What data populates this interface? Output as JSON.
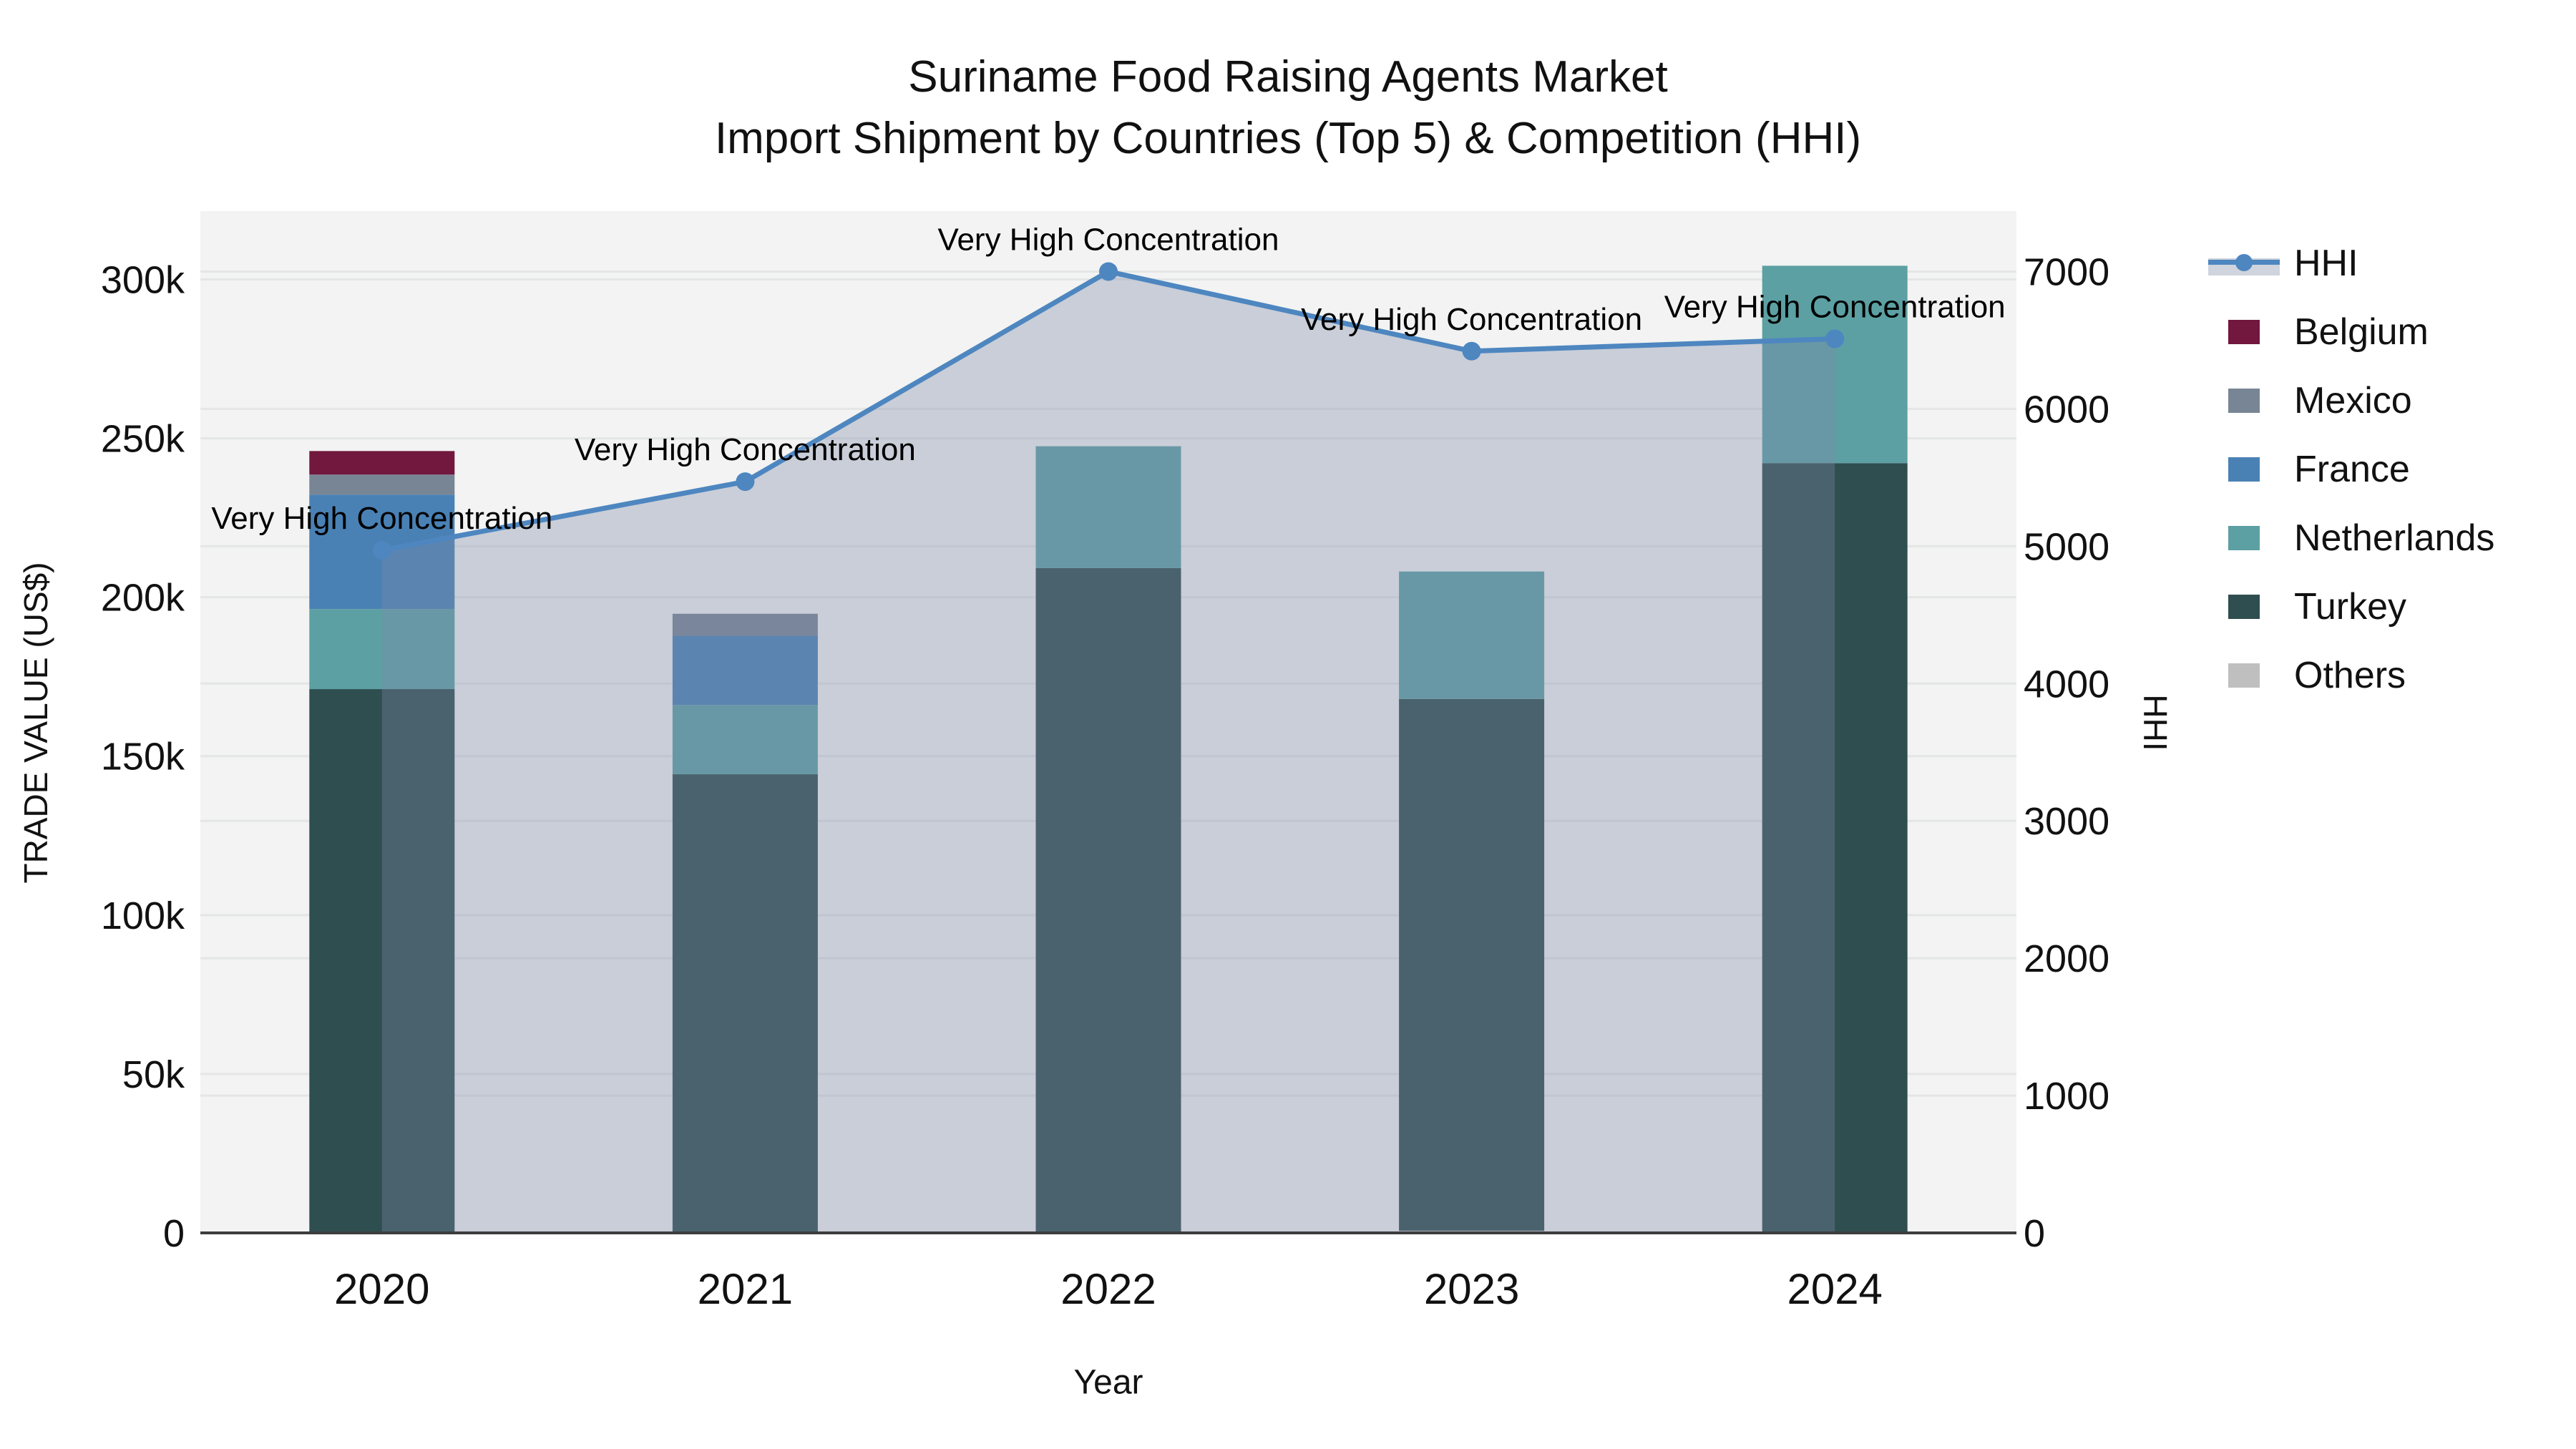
{
  "figure": {
    "title_line1": "Suriname Food Raising Agents Market",
    "title_line2": "Import Shipment by Countries (Top 5) & Competition (HHI)"
  },
  "axes": {
    "x": {
      "title": "Year"
    },
    "y_left": {
      "title": "TRADE VALUE (US$)",
      "tick_labels": [
        "0",
        "50k",
        "100k",
        "150k",
        "200k",
        "250k",
        "300k"
      ],
      "tick_values": [
        0,
        50000,
        100000,
        150000,
        200000,
        250000,
        300000
      ],
      "max_value": 321500
    },
    "y_right": {
      "title": "HHI",
      "tick_labels": [
        "0",
        "1000",
        "2000",
        "3000",
        "4000",
        "5000",
        "6000",
        "7000"
      ],
      "tick_values": [
        0,
        1000,
        2000,
        3000,
        4000,
        5000,
        6000,
        7000
      ],
      "max_value": 7440
    }
  },
  "legend_order": [
    "HHI",
    "Belgium",
    "Mexico",
    "France",
    "Netherlands",
    "Turkey",
    "Others"
  ],
  "colors": {
    "plot_background": "#F2F3F2",
    "gridline": "#E4E6E6",
    "axis_line": "#3D3D3D",
    "hhi_line": "#4E86C0",
    "hhi_area_fill": "rgba(125,138,168,0.35)",
    "Belgium": "#72173E",
    "Mexico": "#788594",
    "France": "#4A81B4",
    "Netherlands": "#5CA0A3",
    "Turkey": "#2F4E4F",
    "Others": "#BFBFBF"
  },
  "chart_data": {
    "type": "bar+line (stacked bars on left axis, HHI line with area on right axis)",
    "categories": [
      "2020",
      "2021",
      "2022",
      "2023",
      "2024"
    ],
    "bar_value_unit": "US$",
    "stack_order_bottom_to_top": [
      "Others",
      "Turkey",
      "Netherlands",
      "France",
      "Mexico",
      "Belgium"
    ],
    "series": [
      {
        "name": "Others",
        "type": "bar",
        "values": [
          0,
          0,
          0,
          700,
          0
        ]
      },
      {
        "name": "Turkey",
        "type": "bar",
        "values": [
          171100,
          144300,
          209200,
          167300,
          242200
        ]
      },
      {
        "name": "Netherlands",
        "type": "bar",
        "values": [
          25200,
          21800,
          38300,
          40100,
          62100
        ]
      },
      {
        "name": "France",
        "type": "bar",
        "values": [
          36000,
          21800,
          0,
          0,
          0
        ]
      },
      {
        "name": "Mexico",
        "type": "bar",
        "values": [
          6300,
          6900,
          0,
          0,
          0
        ]
      },
      {
        "name": "Belgium",
        "type": "bar",
        "values": [
          7400,
          0,
          0,
          0,
          0
        ]
      }
    ],
    "bar_totals": [
      246000,
      194800,
      247500,
      208100,
      304300
    ],
    "line_series": {
      "name": "HHI",
      "axis": "right",
      "values": [
        4970,
        5470,
        7000,
        6420,
        6510
      ]
    },
    "annotations": [
      {
        "text": "Very High Concentration",
        "category": "2020"
      },
      {
        "text": "Very High Concentration",
        "category": "2021"
      },
      {
        "text": "Very High Concentration",
        "category": "2022"
      },
      {
        "text": "Very High Concentration",
        "category": "2023"
      },
      {
        "text": "Very High Concentration",
        "category": "2024"
      }
    ],
    "legend_position": "right",
    "grid": true
  }
}
